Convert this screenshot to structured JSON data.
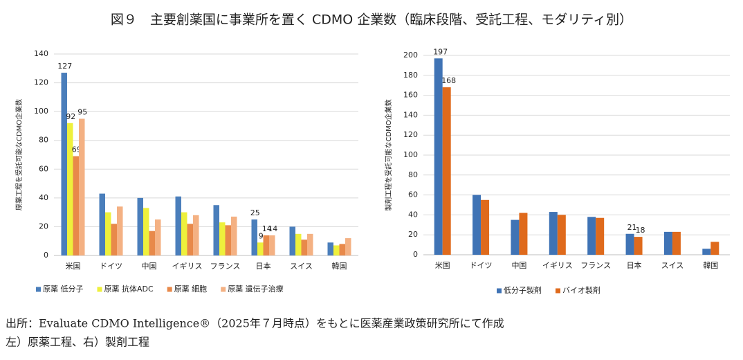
{
  "title": "図９　主要創薬国に事業所を置く CDMO 企業数（臨床段階、受託工程、モダリティ別）",
  "chart_data": [
    {
      "type": "bar",
      "y_label": "原薬工程を受託可能なCDMO企業数",
      "categories": [
        "米国",
        "ドイツ",
        "中国",
        "イギリス",
        "フランス",
        "日本",
        "スイス",
        "韓国"
      ],
      "series": [
        {
          "name": "原薬 低分子",
          "color": "#4a7ebb",
          "values": [
            127,
            43,
            40,
            41,
            35,
            25,
            20,
            9
          ]
        },
        {
          "name": "原薬 抗体ADC",
          "color": "#eef03c",
          "values": [
            92,
            30,
            33,
            30,
            23,
            9,
            15,
            7
          ]
        },
        {
          "name": "原薬 細胞",
          "color": "#e8894a",
          "values": [
            69,
            22,
            17,
            22,
            21,
            14,
            11,
            8
          ]
        },
        {
          "name": "原薬 遺伝子治療",
          "color": "#f4b183",
          "values": [
            95,
            34,
            25,
            28,
            27,
            14,
            15,
            12
          ]
        }
      ],
      "labeled_categories": [
        0,
        5
      ],
      "ylim": [
        0,
        140
      ],
      "yticks": [
        0,
        20,
        40,
        60,
        80,
        100,
        120,
        140
      ],
      "grid": true,
      "legend": "bottom"
    },
    {
      "type": "bar",
      "y_label": "製剤工程を受託可能なCDMO企業数",
      "categories": [
        "米国",
        "ドイツ",
        "中国",
        "イギリス",
        "フランス",
        "日本",
        "スイス",
        "韓国"
      ],
      "series": [
        {
          "name": "低分子製剤",
          "color": "#3f73b5",
          "values": [
            197,
            60,
            35,
            43,
            38,
            21,
            23,
            6
          ]
        },
        {
          "name": "バイオ製剤",
          "color": "#df6a1c",
          "values": [
            168,
            55,
            42,
            40,
            37,
            18,
            23,
            13
          ]
        }
      ],
      "labeled_categories": [
        0,
        5
      ],
      "ylim": [
        0,
        200
      ],
      "yticks": [
        0,
        20,
        40,
        60,
        80,
        100,
        120,
        140,
        160,
        180,
        200
      ],
      "grid": true,
      "legend": "bottom"
    }
  ],
  "notes": [
    "出所：Evaluate CDMO Intelligence®（2025年７月時点）をもとに医薬産業政策研究所にて作成",
    "左）原薬工程、右）製剤工程"
  ]
}
